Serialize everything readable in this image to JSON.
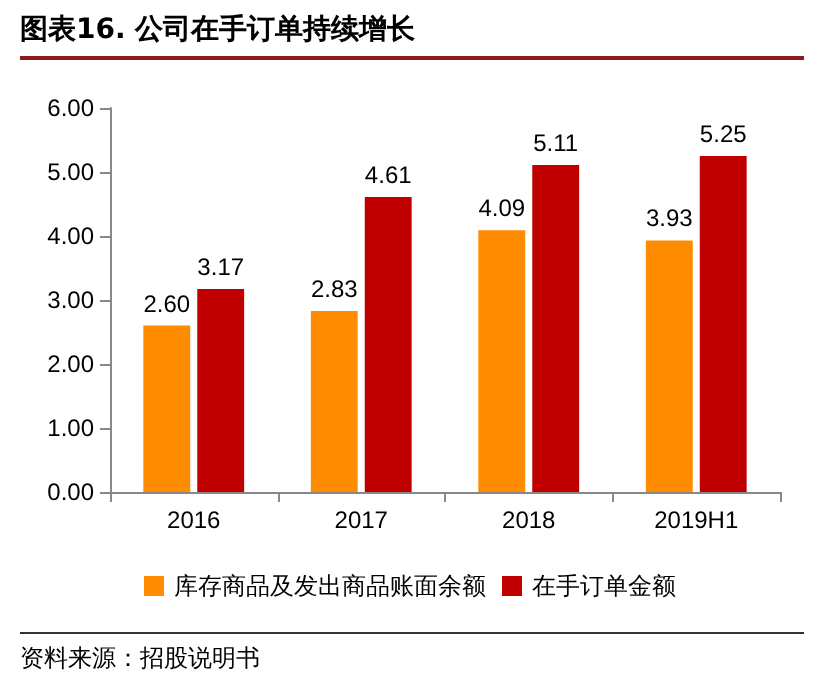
{
  "chart_data": {
    "type": "bar",
    "title": "图表16. 公司在手订单持续增长",
    "categories": [
      "2016",
      "2017",
      "2018",
      "2019H1"
    ],
    "series": [
      {
        "name": "库存商品及发出商品账面余额",
        "color": "#ff8c00",
        "values": [
          2.6,
          2.83,
          4.09,
          3.93
        ],
        "value_labels": [
          "2.60",
          "2.83",
          "4.09",
          "3.93"
        ]
      },
      {
        "name": "在手订单金额",
        "color": "#c00000",
        "values": [
          3.17,
          4.61,
          5.11,
          5.25
        ],
        "value_labels": [
          "3.17",
          "4.61",
          "5.11",
          "5.25"
        ]
      }
    ],
    "ylim": [
      0,
      6
    ],
    "yticks": [
      {
        "value": 0,
        "label": "0.00"
      },
      {
        "value": 1,
        "label": "1.00"
      },
      {
        "value": 2,
        "label": "2.00"
      },
      {
        "value": 3,
        "label": "3.00"
      },
      {
        "value": 4,
        "label": "4.00"
      },
      {
        "value": 5,
        "label": "5.00"
      },
      {
        "value": 6,
        "label": "6.00"
      }
    ],
    "grid": false,
    "legend": "bottom",
    "annotations": [
      "资料来源：招股说明书"
    ]
  }
}
